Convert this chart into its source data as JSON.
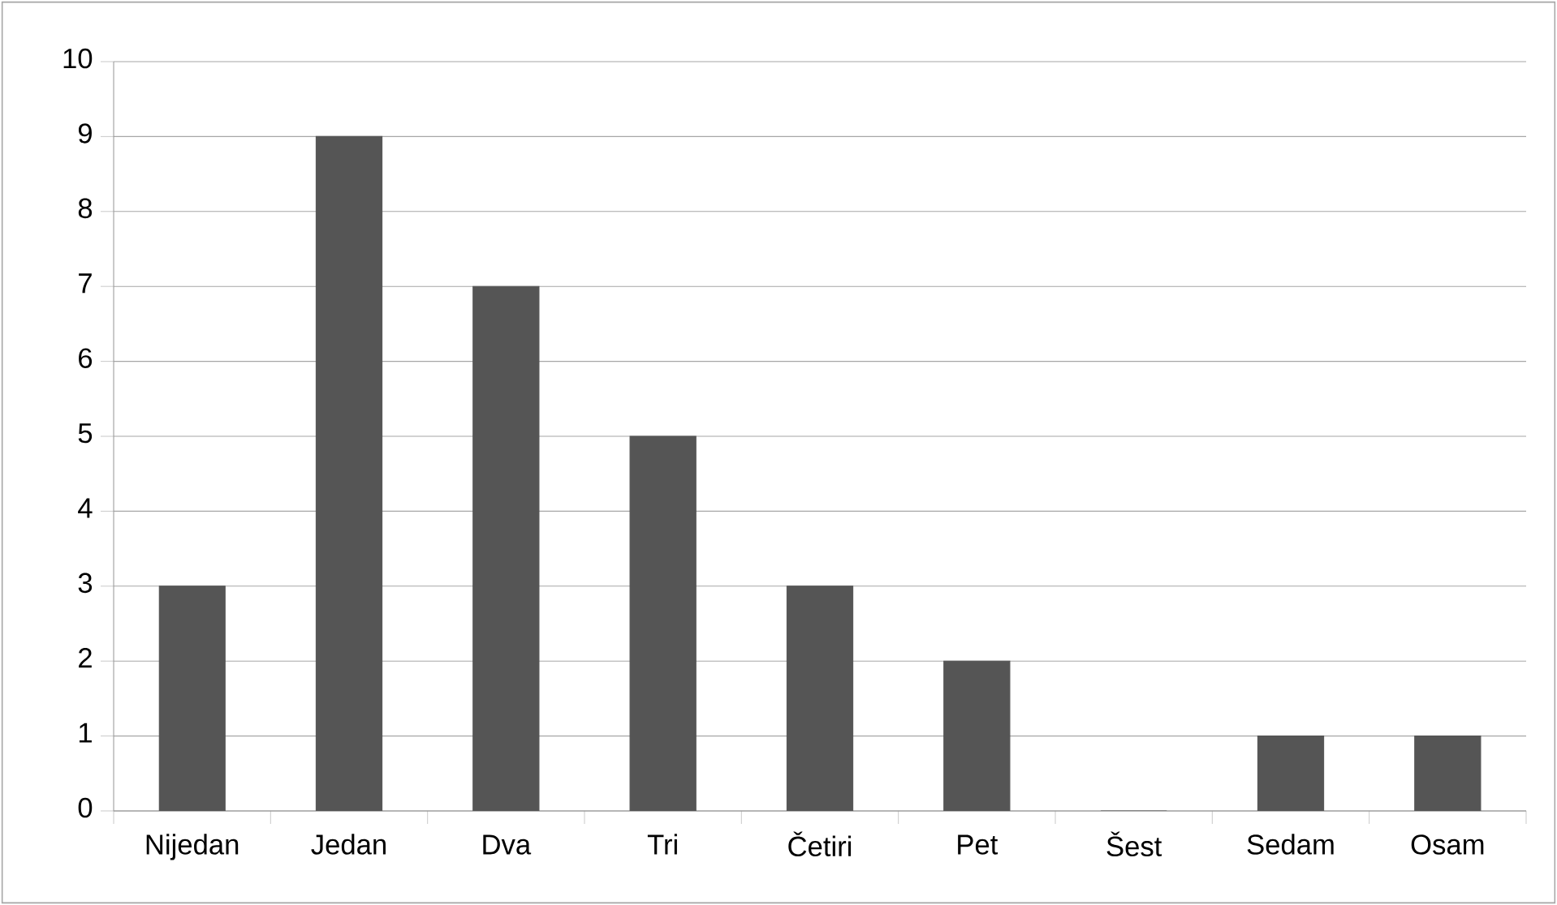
{
  "chart_data": {
    "type": "bar",
    "categories": [
      "Nijedan",
      "Jedan",
      "Dva",
      "Tri",
      "Četiri",
      "Pet",
      "Šest",
      "Sedam",
      "Osam"
    ],
    "values": [
      3,
      9,
      7,
      5,
      3,
      2,
      0,
      1,
      1
    ],
    "color": "#555555",
    "ylim": [
      0,
      10
    ],
    "yticks": [
      0,
      1,
      2,
      3,
      4,
      5,
      6,
      7,
      8,
      9,
      10
    ],
    "grid": "y"
  }
}
